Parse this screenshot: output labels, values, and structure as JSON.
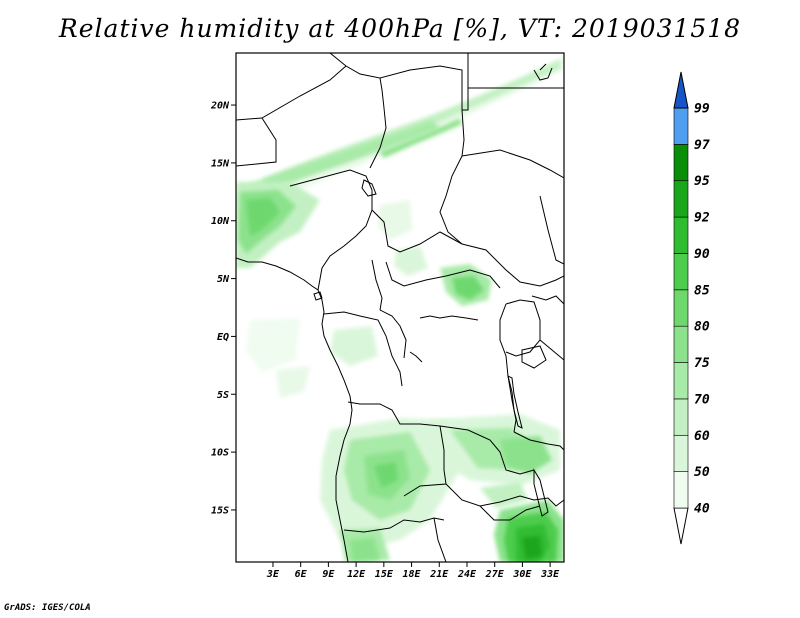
{
  "title": "Relative humidity at 400hPa [%], VT: 2019031518",
  "footer": "GrADS: IGES/COLA",
  "map": {
    "lat_range": [
      -19.5,
      24.5
    ],
    "lon_range": [
      -1,
      34.5
    ],
    "lat_ticks": [
      {
        "lat": 20,
        "label": "20N"
      },
      {
        "lat": 15,
        "label": "15N"
      },
      {
        "lat": 10,
        "label": "10N"
      },
      {
        "lat": 5,
        "label": "5N"
      },
      {
        "lat": 0,
        "label": "EQ"
      },
      {
        "lat": -5,
        "label": "5S"
      },
      {
        "lat": -10,
        "label": "10S"
      },
      {
        "lat": -15,
        "label": "15S"
      }
    ],
    "lon_ticks": [
      {
        "lon": 3,
        "label": "3E"
      },
      {
        "lon": 6,
        "label": "6E"
      },
      {
        "lon": 9,
        "label": "9E"
      },
      {
        "lon": 12,
        "label": "12E"
      },
      {
        "lon": 15,
        "label": "15E"
      },
      {
        "lon": 18,
        "label": "18E"
      },
      {
        "lon": 21,
        "label": "21E"
      },
      {
        "lon": 24,
        "label": "24E"
      },
      {
        "lon": 27,
        "label": "27E"
      },
      {
        "lon": 30,
        "label": "30E"
      },
      {
        "lon": 33,
        "label": "33E"
      }
    ]
  },
  "colorbar": {
    "levels": [
      {
        "value": "40",
        "color": "#f0fcf0"
      },
      {
        "value": "50",
        "color": "#daf6da"
      },
      {
        "value": "60",
        "color": "#c2f0c2"
      },
      {
        "value": "70",
        "color": "#a8eaa8"
      },
      {
        "value": "75",
        "color": "#8ce28c"
      },
      {
        "value": "80",
        "color": "#6ed86e"
      },
      {
        "value": "85",
        "color": "#4ecc4e"
      },
      {
        "value": "90",
        "color": "#30bc30"
      },
      {
        "value": "92",
        "color": "#1aa61a"
      },
      {
        "value": "95",
        "color": "#0a8e0a"
      },
      {
        "value": "97",
        "color": "#4f9ef0"
      },
      {
        "value": "99",
        "color": "#1f6fe0"
      }
    ],
    "top_color": "#1555c8",
    "bottom_color": "#ffffff"
  },
  "colors": {
    "frame": "#000000",
    "boundary": "#000000",
    "land_background": "#ffffff"
  }
}
